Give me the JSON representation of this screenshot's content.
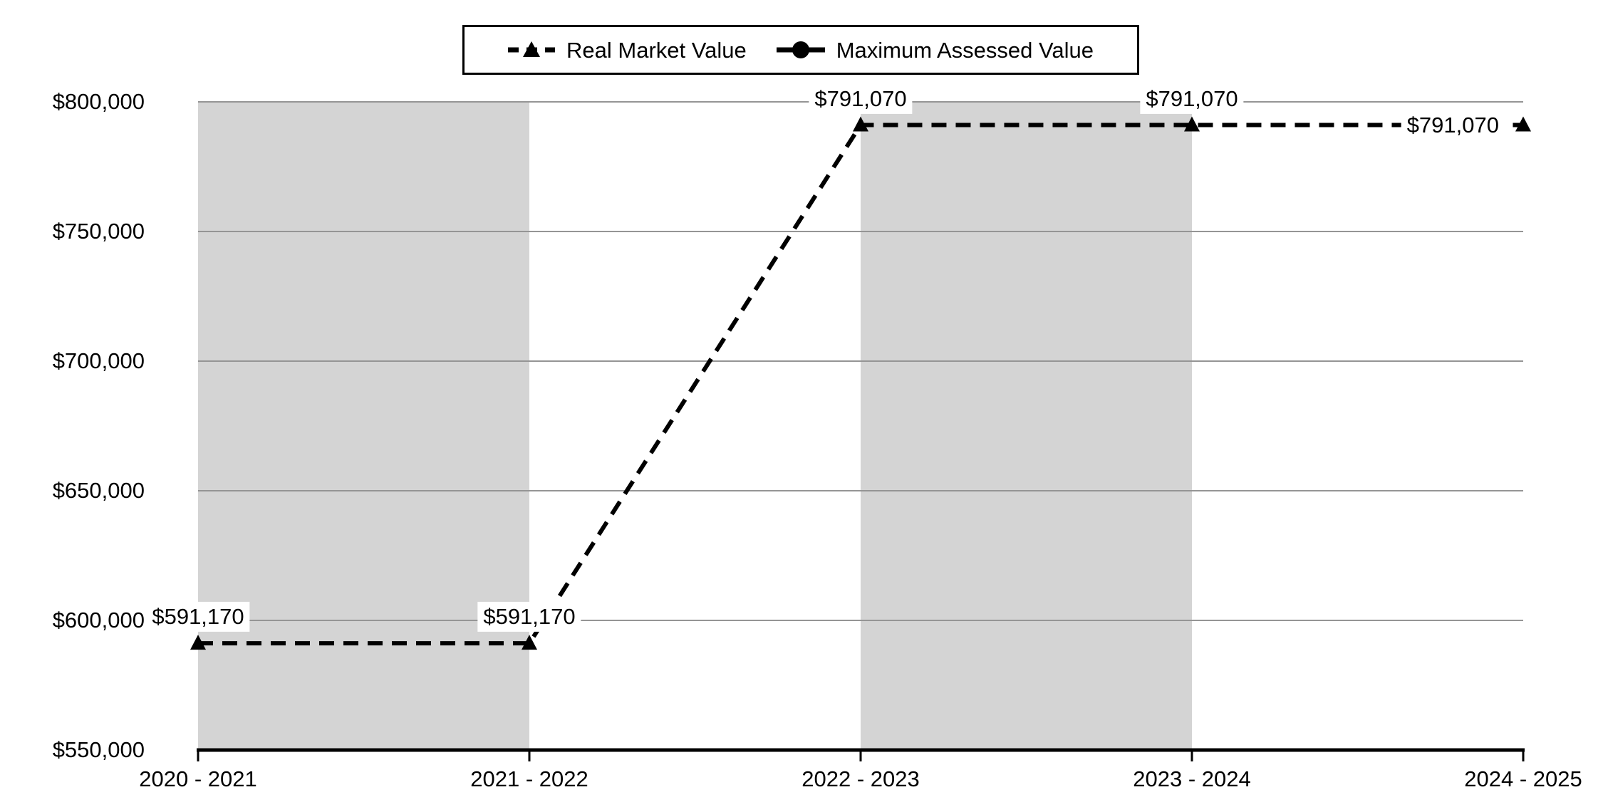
{
  "chart_data": {
    "type": "line",
    "categories": [
      "2020 - 2021",
      "2021 - 2022",
      "2022 - 2023",
      "2023 - 2024",
      "2024 - 2025"
    ],
    "series": [
      {
        "name": "Real Market Value",
        "values": [
          591170,
          591170,
          791070,
          791070,
          791070
        ],
        "point_labels": [
          "$591,170",
          "$591,170",
          "$791,070",
          "$791,070",
          "$791,070"
        ],
        "label_positions": [
          "above",
          "above",
          "above",
          "above",
          "left"
        ],
        "line_style": "dashed",
        "marker": "triangle",
        "color": "#000000",
        "plotted": true
      },
      {
        "name": "Maximum Assessed Value",
        "values": [],
        "point_labels": [],
        "label_positions": [],
        "line_style": "solid",
        "marker": "circle",
        "color": "#000000",
        "plotted": false
      }
    ],
    "ylim": [
      550000,
      800000
    ],
    "y_ticks": [
      {
        "label": "$550,000",
        "value": 550000
      },
      {
        "label": "$600,000",
        "value": 600000
      },
      {
        "label": "$650,000",
        "value": 650000
      },
      {
        "label": "$700,000",
        "value": 700000
      },
      {
        "label": "$750,000",
        "value": 750000
      },
      {
        "label": "$800,000",
        "value": 800000
      }
    ],
    "shaded_bands": [
      {
        "from_category": 0,
        "to_category": 1
      },
      {
        "from_category": 2,
        "to_category": 3
      }
    ],
    "band_color": "#d4d4d4",
    "gridline_color": "#959595",
    "axis_color": "#000000",
    "legend_position": "top-center",
    "grid": "horizontal-only"
  }
}
